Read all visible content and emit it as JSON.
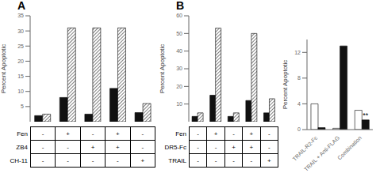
{
  "chart_data": [
    {
      "type": "bar",
      "title": "A",
      "y_label": "Percent Apoptotic",
      "ylim": [
        0,
        35
      ],
      "yticks": [
        5,
        10,
        15,
        20,
        25,
        30,
        35
      ],
      "tick_labels": "y",
      "series": [
        {
          "color": "#111111",
          "values": [
            2.0,
            8.0,
            2.5,
            11.0,
            3.0
          ]
        },
        {
          "color": "#ffffff",
          "values": [
            2.5,
            31.0,
            31.0,
            31.0,
            6.0
          ]
        }
      ],
      "table": {
        "rows": [
          "Fen",
          "ZB4",
          "CH-11"
        ],
        "cols": [
          [
            "-",
            "-",
            "-"
          ],
          [
            "+",
            "-",
            "-"
          ],
          [
            "-",
            "+",
            "-"
          ],
          [
            "+",
            "+",
            "-"
          ],
          [
            "-",
            "-",
            "+"
          ]
        ]
      }
    },
    {
      "type": "bar",
      "title": "B",
      "y_label": "Percent Apoptotic",
      "ylim": [
        0,
        60
      ],
      "yticks": [
        10,
        20,
        30,
        40,
        50,
        60
      ],
      "tick_labels": "y",
      "series": [
        {
          "color": "#111111",
          "values": [
            3.0,
            15.0,
            3.0,
            12.0,
            5.0
          ]
        },
        {
          "color": "#ffffff",
          "values": [
            5.0,
            53.0,
            5.0,
            50.0,
            13.0
          ]
        }
      ],
      "table": {
        "rows": [
          "Fen",
          "DR5-Fc",
          "TRAIL"
        ],
        "cols": [
          [
            "-",
            "-",
            "-"
          ],
          [
            "+",
            "-",
            "-"
          ],
          [
            "-",
            "+",
            "-"
          ],
          [
            "+",
            "+",
            "-"
          ],
          [
            "-",
            "-",
            "+"
          ]
        ]
      }
    },
    {
      "type": "bar",
      "y_label": "Percent Apoptotic",
      "categories": [
        "TRAIL-R2-Fc",
        "TRAIL + Anti-FLAG",
        "Combination"
      ],
      "ylim": [
        0,
        14
      ],
      "yticks": [
        0,
        4,
        8,
        12
      ],
      "series": [
        {
          "color": "#ffffff",
          "values": [
            4.0,
            0.2,
            3.0
          ]
        },
        {
          "color": "#111111",
          "values": [
            0.3,
            13.0,
            1.5
          ]
        }
      ],
      "annotations": [
        {
          "text": "**",
          "category": "Combination"
        }
      ]
    }
  ]
}
